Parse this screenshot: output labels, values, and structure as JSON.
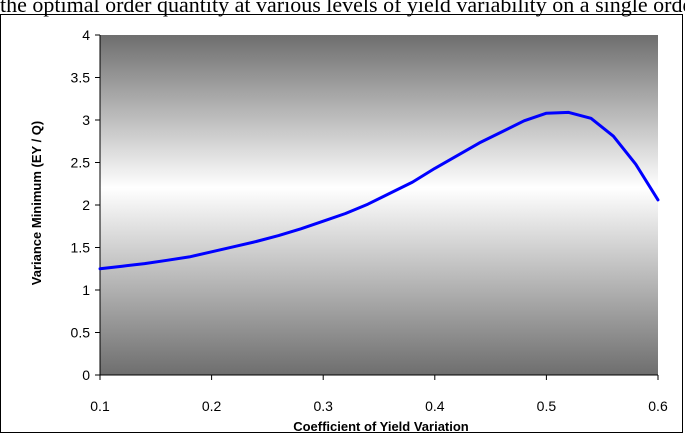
{
  "top_text": "the optimal order quantity at various levels of yield variability on a single order",
  "chart_data": {
    "type": "line",
    "title": "",
    "xlabel": "Coefficient of Yield Variation",
    "ylabel": "Variance Minimum (EY / Q)",
    "xlim": [
      0.1,
      0.6
    ],
    "ylim": [
      0,
      4
    ],
    "x_ticks": [
      "0.1",
      "0.2",
      "0.3",
      "0.4",
      "0.5",
      "0.6"
    ],
    "y_ticks": [
      "0",
      "0.5",
      "1",
      "1.5",
      "2",
      "2.5",
      "3",
      "3.5",
      "4"
    ],
    "grid": false,
    "legend": "none",
    "series": [
      {
        "color": "#0000ff",
        "x": [
          0.1,
          0.12,
          0.14,
          0.16,
          0.18,
          0.2,
          0.22,
          0.24,
          0.26,
          0.28,
          0.3,
          0.32,
          0.34,
          0.36,
          0.38,
          0.4,
          0.42,
          0.44,
          0.46,
          0.48,
          0.5,
          0.52,
          0.54,
          0.56,
          0.58,
          0.6
        ],
        "y": [
          1.25,
          1.28,
          1.31,
          1.35,
          1.39,
          1.45,
          1.51,
          1.57,
          1.64,
          1.72,
          1.81,
          1.9,
          2.01,
          2.14,
          2.27,
          2.43,
          2.58,
          2.73,
          2.86,
          2.99,
          3.08,
          3.09,
          3.02,
          2.81,
          2.48,
          2.06
        ]
      }
    ]
  }
}
